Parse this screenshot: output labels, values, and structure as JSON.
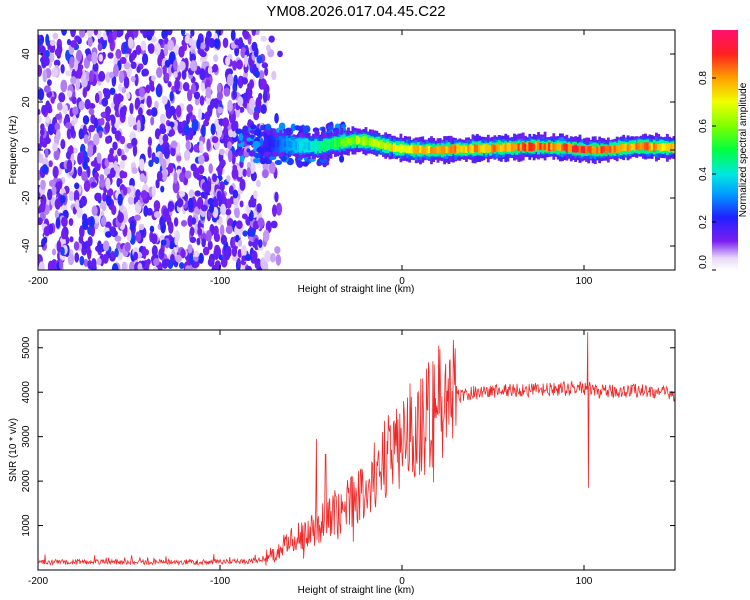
{
  "figure_title": "YM08.2026.017.04.45.C22",
  "chart_data": [
    {
      "type": "heatmap",
      "title": "",
      "xlabel": "Height of straight line (km)",
      "ylabel": "Frequency (Hz)",
      "xlim": [
        -200,
        150
      ],
      "ylim": [
        -50,
        50
      ],
      "xticks": [
        -200,
        -100,
        0,
        100
      ],
      "yticks": [
        -40,
        -20,
        0,
        20,
        40
      ],
      "colorbar": {
        "label": "Normalized spectral amplitude",
        "range": [
          0,
          1
        ],
        "ticks": [
          "0.0",
          "0.2",
          "0.4",
          "0.6",
          "0.8"
        ],
        "colormap": "rainbow (violet-blue-cyan-green-yellow-red-magenta)"
      },
      "noise_region_x": [
        -200,
        -75
      ],
      "noise_amplitude": [
        0.05,
        0.25
      ],
      "transition_region_x": [
        -90,
        -30
      ],
      "signal_trace": {
        "x": [
          -75,
          -60,
          -45,
          -35,
          -25,
          -15,
          -5,
          0,
          10,
          20,
          40,
          60,
          75,
          90,
          100,
          110,
          130,
          150
        ],
        "frequency_hz": [
          3,
          2,
          1.5,
          3,
          4,
          3,
          1,
          0.5,
          0,
          0,
          0.5,
          1,
          1.5,
          1,
          0,
          0,
          1.5,
          1
        ],
        "peak_amplitude": [
          0.2,
          0.35,
          0.45,
          0.55,
          0.65,
          0.7,
          0.75,
          0.75,
          0.8,
          0.85,
          0.85,
          0.85,
          0.9,
          0.85,
          0.95,
          0.9,
          0.85,
          0.8
        ]
      }
    },
    {
      "type": "line",
      "title": "",
      "xlabel": "Height of straight line (km)",
      "ylabel": "SNR (10 * v/v)",
      "xlim": [
        -200,
        150
      ],
      "ylim": [
        0,
        5400
      ],
      "xticks": [
        -200,
        -100,
        0,
        100
      ],
      "yticks": [
        1000,
        2000,
        3000,
        4000,
        5000
      ],
      "series": [
        {
          "name": "SNR",
          "color": "#f02828",
          "x": [
            -200,
            -150,
            -100,
            -80,
            -70,
            -60,
            -50,
            -40,
            -30,
            -20,
            -10,
            0,
            10,
            20,
            30,
            40,
            60,
            80,
            100,
            110,
            130,
            150
          ],
          "values": [
            180,
            180,
            180,
            200,
            350,
            700,
            900,
            1200,
            1500,
            1800,
            2400,
            3000,
            3300,
            3700,
            3900,
            4000,
            4050,
            4050,
            4100,
            4000,
            4050,
            3950
          ],
          "spikes": [
            {
              "x": -47,
              "value": 2950
            },
            {
              "x": -42,
              "value": 2600
            },
            {
              "x": 5,
              "value": 3900
            },
            {
              "x": 14,
              "value": 3600
            },
            {
              "x": 102,
              "value": 5350
            },
            {
              "x": 102.5,
              "value": 1850
            }
          ]
        }
      ]
    }
  ]
}
